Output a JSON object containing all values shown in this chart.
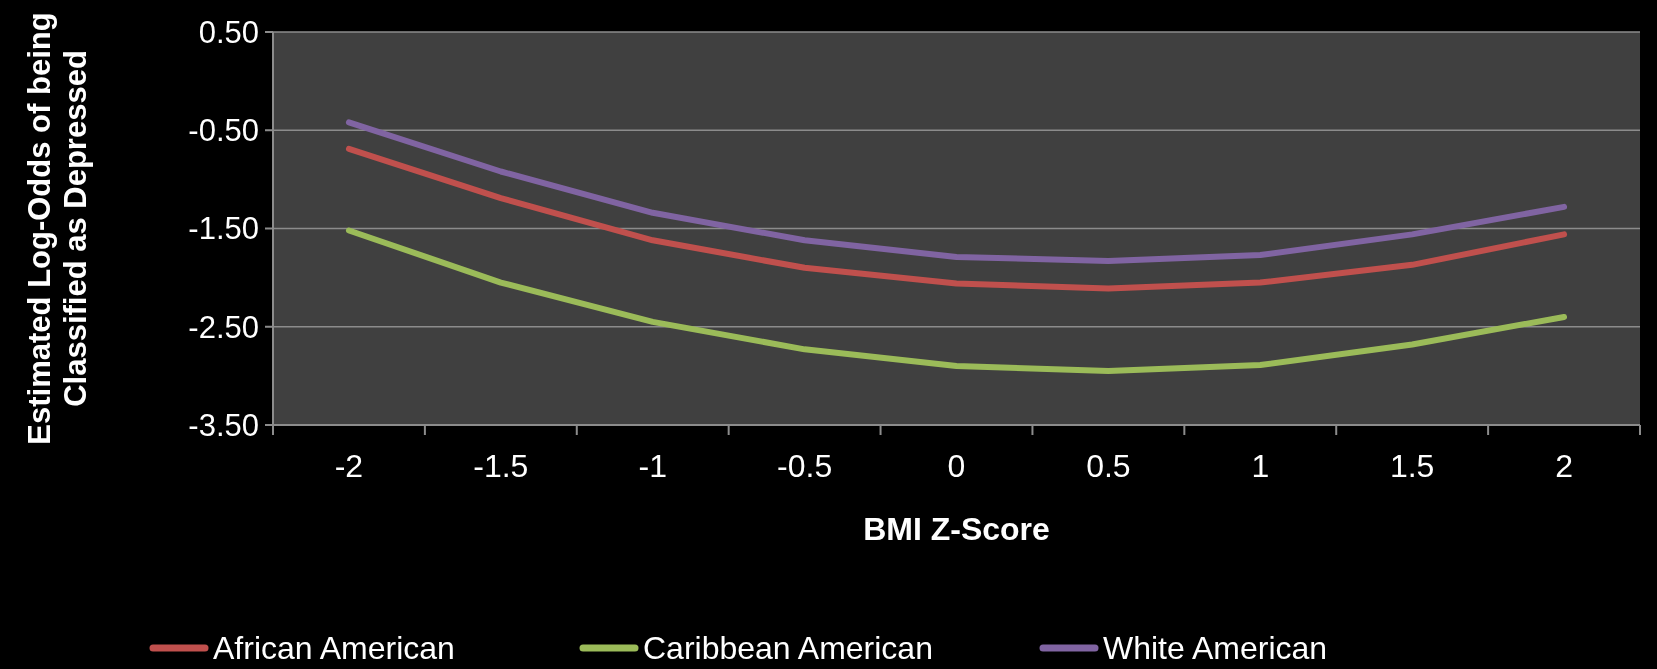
{
  "chart_data": {
    "type": "line",
    "xlabel": "BMI Z-Score",
    "ylabel": "Estimated Log-Odds of being Classified as Depressed",
    "categories": [
      "-2",
      "-1.5",
      "-1",
      "-0.5",
      "0",
      "0.5",
      "1",
      "1.5",
      "2"
    ],
    "series": [
      {
        "name": "African American",
        "color": "#c0504d",
        "values": [
          -0.69,
          -1.19,
          -1.62,
          -1.9,
          -2.06,
          -2.11,
          -2.05,
          -1.87,
          -1.56
        ]
      },
      {
        "name": "Caribbean American",
        "color": "#9bbb59",
        "values": [
          -1.52,
          -2.05,
          -2.45,
          -2.73,
          -2.9,
          -2.95,
          -2.89,
          -2.68,
          -2.4
        ]
      },
      {
        "name": "White American",
        "color": "#8064a2",
        "values": [
          -0.42,
          -0.92,
          -1.34,
          -1.62,
          -1.79,
          -1.83,
          -1.77,
          -1.56,
          -1.28
        ]
      }
    ],
    "ylim": [
      -3.5,
      0.5
    ],
    "yticks": [
      {
        "value": 0.5,
        "label": "0.50"
      },
      {
        "value": -0.5,
        "label": "-0.50"
      },
      {
        "value": -1.5,
        "label": "-1.50"
      },
      {
        "value": -2.5,
        "label": "-2.50"
      },
      {
        "value": -3.5,
        "label": "-3.50"
      }
    ],
    "grid": "y",
    "legend": "bottom",
    "marker": "none",
    "line_style": "solid"
  }
}
